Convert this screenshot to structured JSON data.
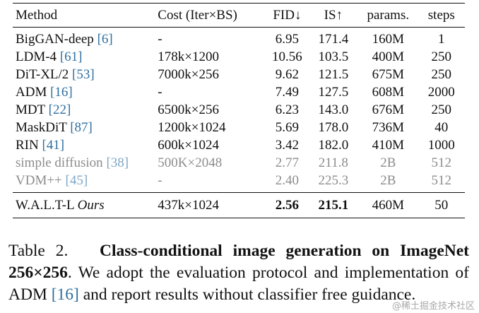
{
  "table": {
    "headers": {
      "method": "Method",
      "cost": "Cost (Iter×BS)",
      "fid": "FID↓",
      "is": "IS↑",
      "params": "params.",
      "steps": "steps"
    },
    "rows": [
      {
        "method": "BigGAN-deep",
        "ref": "[6]",
        "cost": "-",
        "fid": "6.95",
        "is": "171.4",
        "params": "160M",
        "steps": "1"
      },
      {
        "method": "LDM-4",
        "ref": "[61]",
        "cost": "178k×1200",
        "fid": "10.56",
        "is": "103.5",
        "params": "400M",
        "steps": "250"
      },
      {
        "method": "DiT-XL/2",
        "ref": "[53]",
        "cost": "7000k×256",
        "fid": "9.62",
        "is": "121.5",
        "params": "675M",
        "steps": "250"
      },
      {
        "method": "ADM",
        "ref": "[16]",
        "cost": "-",
        "fid": "7.49",
        "is": "127.5",
        "params": "608M",
        "steps": "2000"
      },
      {
        "method": "MDT",
        "ref": "[22]",
        "cost": "6500k×256",
        "fid": "6.23",
        "is": "143.0",
        "params": "676M",
        "steps": "250"
      },
      {
        "method": "MaskDiT",
        "ref": "[87]",
        "cost": "1200k×1024",
        "fid": "5.69",
        "is": "178.0",
        "params": "736M",
        "steps": "40"
      },
      {
        "method": "RIN",
        "ref": "[41]",
        "cost": "600k×1024",
        "fid": "3.42",
        "is": "182.0",
        "params": "410M",
        "steps": "1000"
      },
      {
        "method": "simple diffusion",
        "ref": "[38]",
        "cost": "500K×2048",
        "fid": "2.77",
        "is": "211.8",
        "params": "2B",
        "steps": "512"
      },
      {
        "method": "VDM++",
        "ref": "[45]",
        "cost": "-",
        "fid": "2.40",
        "is": "225.3",
        "params": "2B",
        "steps": "512"
      }
    ],
    "ours": {
      "method": "W.A.L.T-L",
      "tag": "Ours",
      "cost": "437k×1024",
      "fid": "2.56",
      "is": "215.1",
      "params": "460M",
      "steps": "50"
    }
  },
  "caption": {
    "label": "Table 2.",
    "title": "Class-conditional image generation on ImageNet 256×256",
    "text_before_ref": ". We adopt the evaluation protocol and implementation of ADM",
    "ref": "[16]",
    "text_after_ref": "and report results without classifier free guidance."
  },
  "watermark": "@稀土掘金技术社区"
}
